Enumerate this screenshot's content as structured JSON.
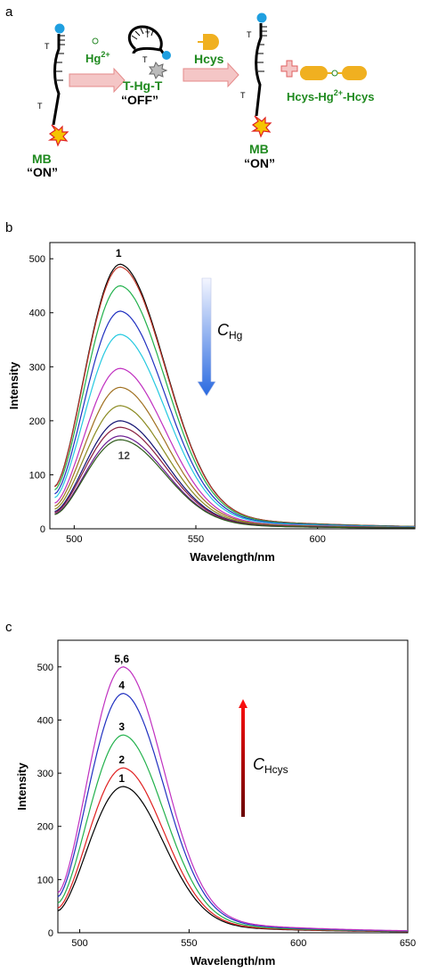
{
  "panel_a": {
    "letter": "a",
    "t_labels": [
      "T",
      "T",
      "T",
      "T",
      "T",
      "T"
    ],
    "hg_label": "Hg",
    "hg_sup": "2+",
    "thg_label": "T-Hg-T",
    "off_label": "“OFF”",
    "hcys_label": "Hcys",
    "mb_left": "MB",
    "on_left": "“ON”",
    "mb_right": "MB",
    "on_right": "“ON”",
    "complex_prefix": "Hcys-Hg",
    "complex_sup": "2+",
    "complex_suffix": "-Hcys"
  },
  "chart_data": [
    {
      "panel": "b",
      "type": "line",
      "letter": "b",
      "title": "",
      "xlabel": "Wavelength/nm",
      "ylabel": "Intensity",
      "xlim": [
        490,
        640
      ],
      "ylim": [
        0,
        530
      ],
      "xticks": [
        500,
        550,
        600
      ],
      "yticks": [
        0,
        100,
        200,
        300,
        400,
        500
      ],
      "peak_x": 519,
      "start_x": 492,
      "end_x": 640,
      "start_fraction": 0.16,
      "grid": false,
      "annotation_top": "1",
      "annotation_bottom": "12",
      "arrow": {
        "label_main": "C",
        "label_sub": "Hg",
        "direction": "down"
      },
      "series": [
        {
          "values": [
            492,
            25
          ],
          "peak": 490,
          "color": "#000000",
          "label": "1"
        },
        {
          "peak": 485,
          "color": "#c0392b"
        },
        {
          "peak": 450,
          "color": "#22b14c"
        },
        {
          "peak": 403,
          "color": "#2030c0"
        },
        {
          "peak": 360,
          "color": "#25c9e0"
        },
        {
          "peak": 297,
          "color": "#c030c0"
        },
        {
          "peak": 262,
          "color": "#a07020"
        },
        {
          "peak": 228,
          "color": "#8a8a20"
        },
        {
          "peak": 200,
          "color": "#101070"
        },
        {
          "peak": 188,
          "color": "#8a2040"
        },
        {
          "peak": 172,
          "color": "#6a1a90"
        },
        {
          "peak": 165,
          "color": "#2d5a1a",
          "label": "12"
        }
      ]
    },
    {
      "panel": "c",
      "type": "line",
      "letter": "c",
      "title": "",
      "xlabel": "Wavelength/nm",
      "ylabel": "Intensity",
      "xlim": [
        490,
        650
      ],
      "ylim": [
        0,
        550
      ],
      "xticks": [
        500,
        550,
        600,
        650
      ],
      "yticks": [
        0,
        100,
        200,
        300,
        400,
        500
      ],
      "peak_x": 520,
      "start_x": 490,
      "end_x": 650,
      "start_fraction": 0.15,
      "grid": false,
      "arrow": {
        "label_main": "C",
        "label_sub": "Hcys",
        "direction": "up"
      },
      "series": [
        {
          "peak": 275,
          "color": "#000000",
          "label": "1"
        },
        {
          "peak": 310,
          "color": "#e02020",
          "label": "2"
        },
        {
          "peak": 372,
          "color": "#22b14c",
          "label": "3"
        },
        {
          "peak": 450,
          "color": "#2030c0",
          "label": "4"
        },
        {
          "peak": 500,
          "color": "#c030c0",
          "label": "5,6"
        }
      ]
    }
  ]
}
